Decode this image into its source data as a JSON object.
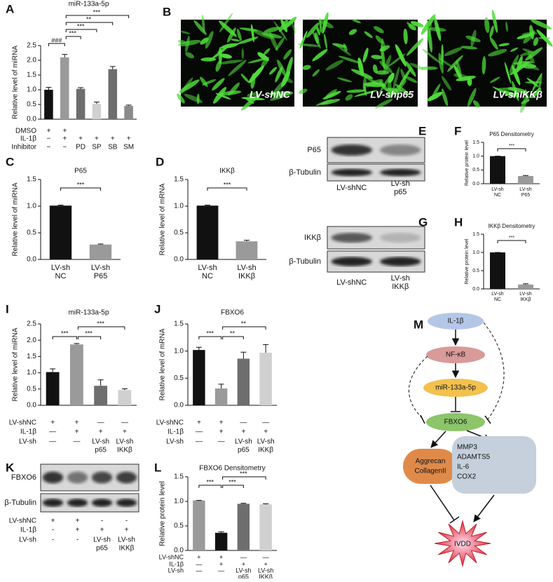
{
  "chart_data": [
    {
      "panel": "A",
      "type": "bar",
      "title": "miR-133a-5p",
      "ylabel": "Relative level of miRNA",
      "values": [
        1.0,
        2.1,
        1.03,
        0.52,
        1.7,
        0.45
      ],
      "errors": [
        0.08,
        0.1,
        0.04,
        0.06,
        0.09,
        0.03
      ],
      "colors": [
        "#111111",
        "#9a9a9a",
        "#6e6e6e",
        "#d0d0d0",
        "#6e6e6e",
        "#8a8a8a"
      ],
      "ylim": [
        0,
        2.5
      ],
      "yticks": [
        {
          "value": 0,
          "label": "0.0"
        },
        0.5,
        {
          "value": 1,
          "label": "1.0"
        },
        1.5,
        {
          "value": 2,
          "label": "2.0"
        },
        2.5
      ],
      "brackets": [
        {
          "from": 0,
          "to": 1,
          "label": "###"
        },
        {
          "from": 1,
          "to": 2,
          "label": "***"
        },
        {
          "from": 1,
          "to": 3,
          "label": "***"
        },
        {
          "from": 1,
          "to": 4,
          "label": "**"
        },
        {
          "from": 1,
          "to": 5,
          "label": "***"
        }
      ],
      "conditions": [
        {
          "name": "DMSO",
          "cells": [
            [
              "+"
            ],
            [
              "+"
            ],
            null,
            null,
            null,
            null
          ]
        },
        {
          "name": "IL-1β",
          "cells": [
            [
              "−"
            ],
            [
              "+"
            ],
            [
              "+"
            ],
            [
              "+"
            ],
            [
              "+"
            ],
            [
              "+"
            ]
          ]
        },
        {
          "name": "Inhibitor",
          "cells": [
            [
              "−"
            ],
            [
              "−"
            ],
            [
              "PD"
            ],
            [
              "SP"
            ],
            [
              "SB"
            ],
            [
              "SM"
            ]
          ]
        }
      ]
    },
    {
      "panel": "C",
      "type": "bar",
      "title": "P65",
      "ylabel": "Relative level of miRNA",
      "categories": [
        [
          "LV-sh",
          "NC"
        ],
        [
          "LV-sh",
          "P65"
        ]
      ],
      "values": [
        1.01,
        0.28
      ],
      "errors": [
        0.01,
        0.01
      ],
      "colors": [
        "#111111",
        "#9a9a9a"
      ],
      "ylim": [
        0,
        1.5
      ],
      "yticks": [
        {
          "value": 0,
          "label": "0.0"
        },
        0.5,
        {
          "value": 1,
          "label": "1.0"
        },
        1.5
      ],
      "brackets": [
        {
          "from": 0,
          "to": 1,
          "label": "***"
        }
      ]
    },
    {
      "panel": "D",
      "type": "bar",
      "title": "IKKβ",
      "ylabel": "Relative level of mRNA",
      "categories": [
        [
          "LV-sh",
          "NC"
        ],
        [
          "LV-sh",
          "IKKβ"
        ]
      ],
      "values": [
        1.01,
        0.34
      ],
      "errors": [
        0.01,
        0.02
      ],
      "colors": [
        "#111111",
        "#9a9a9a"
      ],
      "ylim": [
        0,
        1.5
      ],
      "yticks": [
        {
          "value": 0,
          "label": "0.0"
        },
        0.5,
        {
          "value": 1,
          "label": "1.0"
        },
        1.5
      ],
      "brackets": [
        {
          "from": 0,
          "to": 1,
          "label": "***"
        }
      ]
    },
    {
      "panel": "F",
      "type": "bar",
      "title": "P65 Densitometry",
      "ylabel": "Relative protein level",
      "categories": [
        [
          "LV-sh",
          "NC"
        ],
        [
          "LV-sh",
          "P65"
        ]
      ],
      "values": [
        1.0,
        0.28
      ],
      "errors": [
        0.0,
        0.02
      ],
      "colors": [
        "#111111",
        "#9a9a9a"
      ],
      "ylim": [
        0,
        1.5
      ],
      "yticks": [
        {
          "value": 0,
          "label": "0.0"
        },
        0.5,
        {
          "value": 1,
          "label": "1.0"
        },
        1.5
      ],
      "brackets": [
        {
          "from": 0,
          "to": 1,
          "label": "***"
        }
      ]
    },
    {
      "panel": "H",
      "type": "bar",
      "title": "IKKβ Densitometry",
      "ylabel": "Relative protein level",
      "categories": [
        [
          "LV-sh",
          "NC"
        ],
        [
          "LV-sh",
          "IKKβ"
        ]
      ],
      "values": [
        1.0,
        0.12
      ],
      "errors": [
        0.0,
        0.02
      ],
      "colors": [
        "#111111",
        "#9a9a9a"
      ],
      "ylim": [
        0,
        1.5
      ],
      "yticks": [
        {
          "value": 0,
          "label": "0.0"
        },
        0.5,
        {
          "value": 1,
          "label": "1.0"
        },
        1.5
      ],
      "brackets": [
        {
          "from": 0,
          "to": 1,
          "label": "***"
        }
      ]
    },
    {
      "panel": "I",
      "type": "bar",
      "title": "miR-133a-5p",
      "ylabel": "Relative level of miRNA",
      "values": [
        1.02,
        1.87,
        0.6,
        0.47
      ],
      "errors": [
        0.1,
        0.03,
        0.18,
        0.04
      ],
      "colors": [
        "#111111",
        "#9a9a9a",
        "#6e6e6e",
        "#d0d0d0"
      ],
      "ylim": [
        0,
        2.5
      ],
      "yticks": [
        {
          "value": 0,
          "label": "0.0"
        },
        0.5,
        {
          "value": 1,
          "label": "1.0"
        },
        1.5,
        {
          "value": 2,
          "label": "2.0"
        },
        2.5
      ],
      "brackets": [
        {
          "from": 0,
          "to": 1,
          "label": "***"
        },
        {
          "from": 1,
          "to": 2,
          "label": "***"
        },
        {
          "from": 1,
          "to": 3,
          "label": "***"
        }
      ],
      "conditions": [
        {
          "name": "LV-shNC",
          "cells": [
            [
              "+"
            ],
            [
              "+"
            ],
            [
              "—"
            ],
            [
              "—"
            ]
          ]
        },
        {
          "name": "IL-1β",
          "cells": [
            [
              "—"
            ],
            [
              "+"
            ],
            [
              "+"
            ],
            [
              "+"
            ]
          ]
        },
        {
          "name": "LV-sh",
          "cells": [
            [
              "—"
            ],
            [
              "—"
            ],
            [
              "LV-sh",
              "p65"
            ],
            [
              "LV-sh",
              "IKKβ"
            ]
          ]
        }
      ]
    },
    {
      "panel": "J",
      "type": "bar",
      "title": "FBXO6",
      "ylabel": "Relative level of mRNA",
      "values": [
        1.02,
        0.31,
        0.86,
        0.97
      ],
      "errors": [
        0.05,
        0.08,
        0.12,
        0.15
      ],
      "colors": [
        "#111111",
        "#9a9a9a",
        "#6e6e6e",
        "#d0d0d0"
      ],
      "ylim": [
        0,
        1.5
      ],
      "yticks": [
        {
          "value": 0,
          "label": "0.0"
        },
        0.5,
        {
          "value": 1,
          "label": "1.0"
        },
        1.5
      ],
      "brackets": [
        {
          "from": 0,
          "to": 1,
          "label": "***"
        },
        {
          "from": 1,
          "to": 2,
          "label": "**"
        },
        {
          "from": 1,
          "to": 3,
          "label": "**"
        }
      ],
      "conditions": [
        {
          "name": "LV-shNC",
          "cells": [
            [
              "+"
            ],
            [
              "+"
            ],
            [
              "—"
            ],
            [
              "—"
            ]
          ]
        },
        {
          "name": "IL-1β",
          "cells": [
            [
              "—"
            ],
            [
              "+"
            ],
            [
              "+"
            ],
            [
              "+"
            ]
          ]
        },
        {
          "name": "LV-sh",
          "cells": [
            [
              "—"
            ],
            [
              "—"
            ],
            [
              "LV-sh",
              "p65"
            ],
            [
              "LV-sh",
              "IKKβ"
            ]
          ]
        }
      ]
    },
    {
      "panel": "L",
      "type": "bar",
      "title": "FBXO6 Densitometry",
      "ylabel": "Relative protein level",
      "values": [
        1.02,
        0.36,
        0.95,
        0.94
      ],
      "errors": [
        0.0,
        0.02,
        0.01,
        0.01
      ],
      "colors": [
        "#9a9a9a",
        "#111111",
        "#6e6e6e",
        "#d0d0d0"
      ],
      "ylim": [
        0,
        1.5
      ],
      "yticks": [
        {
          "value": 0,
          "label": "0.0"
        },
        0.5,
        {
          "value": 1,
          "label": "1.0"
        },
        1.5
      ],
      "brackets": [
        {
          "from": 0,
          "to": 1,
          "label": "***"
        },
        {
          "from": 1,
          "to": 2,
          "label": "***"
        },
        {
          "from": 1,
          "to": 3,
          "label": "***"
        }
      ],
      "conditions": [
        {
          "name": "LV-shNC",
          "cells": [
            [
              "+"
            ],
            [
              "+"
            ],
            [
              "—"
            ],
            [
              "—"
            ]
          ]
        },
        {
          "name": "IL-1β",
          "cells": [
            [
              "—"
            ],
            [
              "+"
            ],
            [
              "+"
            ],
            [
              "+"
            ]
          ]
        },
        {
          "name": "LV-sh",
          "cells": [
            [
              "—"
            ],
            [
              "—"
            ],
            [
              "LV-sh",
              "p65"
            ],
            [
              "LV-sh",
              "IKKβ"
            ]
          ]
        }
      ]
    }
  ],
  "micrographs": {
    "panel": "B",
    "labels": [
      "LV-shNC",
      "LV-shp65",
      "LV-shIKKβ"
    ]
  },
  "blots": [
    {
      "panel": "E",
      "rows": [
        "P65",
        "β-Tubulin"
      ],
      "lanes": [
        [
          "LV-shNC"
        ],
        [
          "LV-sh",
          "p65"
        ]
      ]
    },
    {
      "panel": "G",
      "rows": [
        "IKKβ",
        "β-Tubulin"
      ],
      "lanes": [
        [
          "LV-shNC"
        ],
        [
          "LV-sh",
          "IKKβ"
        ]
      ]
    },
    {
      "panel": "K",
      "rows": [
        "FBXO6",
        "β-Tubulin"
      ],
      "conditions": [
        {
          "name": "LV-shNC",
          "cells": [
            [
              "+"
            ],
            [
              "+"
            ],
            [
              "-"
            ],
            [
              "-"
            ]
          ]
        },
        {
          "name": "IL-1β",
          "cells": [
            [
              "-"
            ],
            [
              "+"
            ],
            [
              "+"
            ],
            [
              "+"
            ]
          ]
        },
        {
          "name": "LV-sh",
          "cells": [
            [
              "-"
            ],
            [
              "-"
            ],
            [
              "LV-sh",
              "p65"
            ],
            [
              "LV-sh",
              "IKKβ"
            ]
          ]
        }
      ]
    }
  ],
  "diagram": {
    "panel": "M",
    "nodes": [
      [
        "IL-1β"
      ],
      [
        "NF-κB"
      ],
      [
        "miR-133a-5p"
      ],
      [
        "FBXO6"
      ],
      [
        "Aggrecan",
        "CollagenII"
      ],
      [
        "MMP3",
        "ADAMTS5",
        "IL-6",
        "COX2"
      ],
      [
        "IVDD"
      ]
    ]
  }
}
